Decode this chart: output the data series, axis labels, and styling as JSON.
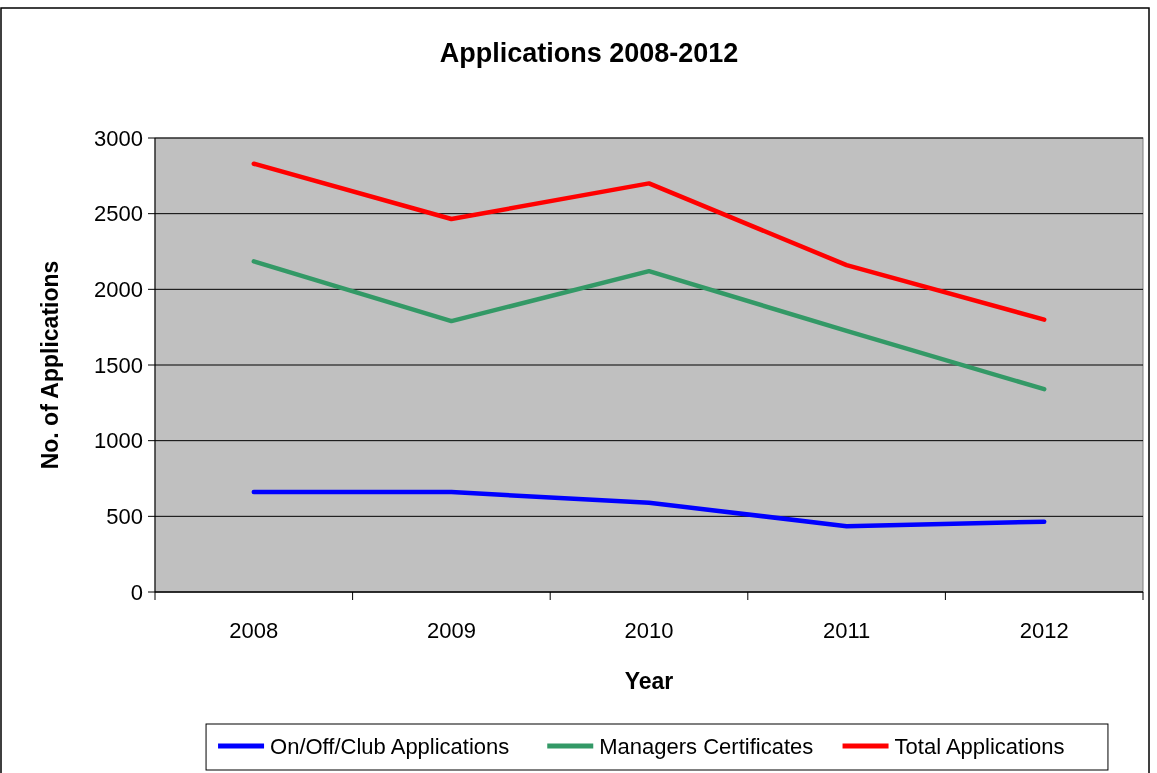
{
  "chart_data": {
    "type": "line",
    "title": "Applications 2008-2012",
    "xlabel": "Year",
    "ylabel": "No. of Applications",
    "categories": [
      "2008",
      "2009",
      "2010",
      "2011",
      "2012"
    ],
    "series": [
      {
        "name": "On/Off/Club Applications",
        "color": "#0000ff",
        "values": [
          660,
          660,
          590,
          435,
          465
        ]
      },
      {
        "name": "Managers Certificates",
        "color": "#339966",
        "values": [
          2185,
          1790,
          2120,
          1725,
          1340
        ]
      },
      {
        "name": "Total Applications",
        "color": "#ff0000",
        "values": [
          2830,
          2465,
          2700,
          2160,
          1800
        ]
      }
    ],
    "ylim": [
      0,
      3000
    ],
    "yticks": [
      0,
      500,
      1000,
      1500,
      2000,
      2500,
      3000
    ],
    "grid": "y",
    "legend": "bottom",
    "marker": "none",
    "line_style": "solid"
  }
}
